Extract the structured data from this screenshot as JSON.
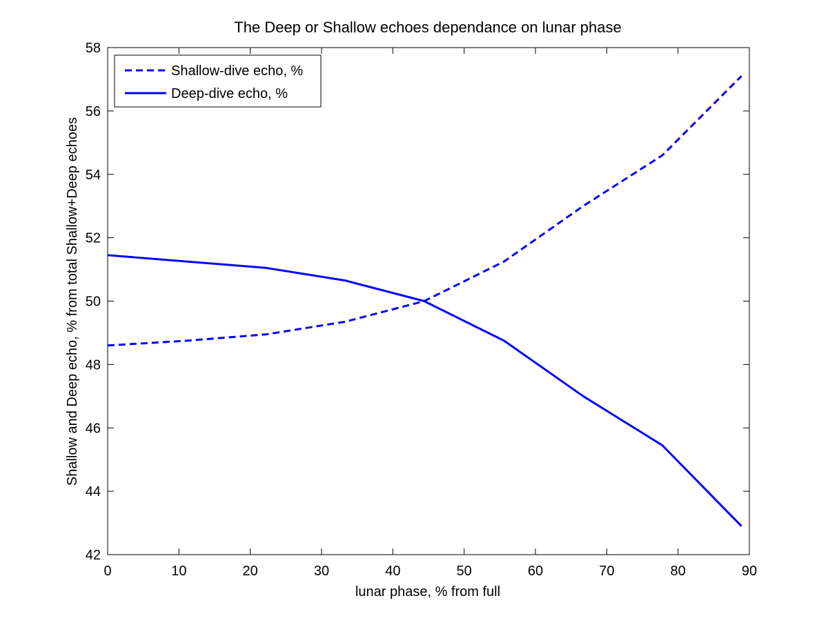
{
  "chart_data": {
    "type": "line",
    "title": "The Deep or Shallow echoes dependance on lunar phase",
    "xlabel": "lunar phase, % from full",
    "ylabel": "Shallow and Deep echo, % from total Shallow+Deep echoes",
    "xlim": [
      0,
      90
    ],
    "ylim": [
      42,
      58
    ],
    "xticks": [
      0,
      10,
      20,
      30,
      40,
      50,
      60,
      70,
      80,
      90
    ],
    "yticks": [
      42,
      44,
      46,
      48,
      50,
      52,
      54,
      56,
      58
    ],
    "grid": false,
    "legend_position": "top-left",
    "x": [
      0,
      11.1,
      22.2,
      33.3,
      44.4,
      55.6,
      66.7,
      77.8,
      88.9
    ],
    "series": [
      {
        "name": "Shallow-dive echo, %",
        "style": "dashed",
        "color": "#0000ff",
        "values": [
          48.6,
          48.75,
          48.95,
          49.35,
          50.0,
          51.25,
          53.0,
          54.6,
          57.1
        ]
      },
      {
        "name": "Deep-dive echo, %",
        "style": "solid",
        "color": "#0000ff",
        "values": [
          51.45,
          51.25,
          51.05,
          50.65,
          50.0,
          48.75,
          47.0,
          45.45,
          42.9
        ]
      }
    ]
  }
}
